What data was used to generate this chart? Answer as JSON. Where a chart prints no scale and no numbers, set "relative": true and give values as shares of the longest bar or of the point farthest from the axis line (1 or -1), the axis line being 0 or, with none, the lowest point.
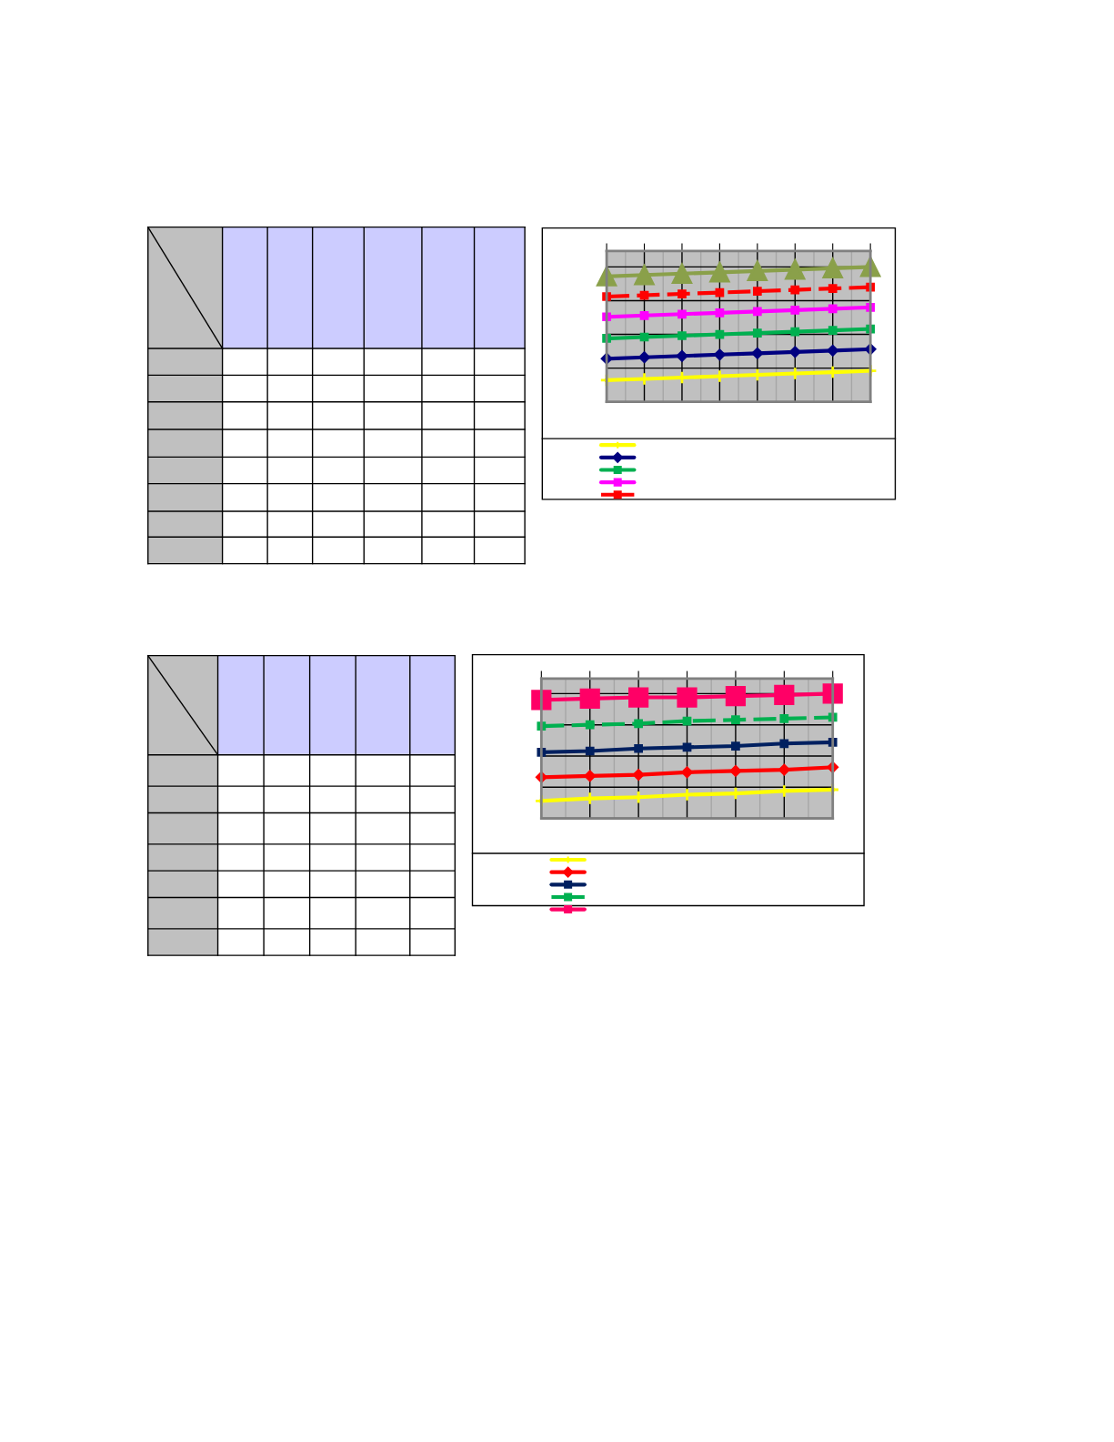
{
  "chart_data": [
    {
      "type": "line",
      "relative": true,
      "grid": true,
      "categories": [
        null,
        null,
        null,
        null,
        null,
        null,
        null,
        null
      ],
      "series": [
        {
          "color": "#ffff00",
          "marker": "cross",
          "values": [
            0.16,
            0.17,
            0.18,
            0.19,
            0.2,
            0.21,
            0.22,
            0.23
          ]
        },
        {
          "color": "#000080",
          "marker": "diamond",
          "values": [
            0.32,
            0.33,
            0.34,
            0.35,
            0.36,
            0.37,
            0.38,
            0.39
          ]
        },
        {
          "color": "#00b050",
          "marker": "square",
          "values": [
            0.47,
            0.48,
            0.49,
            0.5,
            0.51,
            0.52,
            0.53,
            0.54
          ]
        },
        {
          "color": "#ff00ff",
          "marker": "square",
          "values": [
            0.63,
            0.64,
            0.65,
            0.66,
            0.67,
            0.68,
            0.69,
            0.7
          ]
        },
        {
          "color": "#ff0000",
          "marker": "square",
          "line_style": "dashed",
          "values": [
            0.78,
            0.79,
            0.8,
            0.81,
            0.82,
            0.83,
            0.84,
            0.85
          ]
        },
        {
          "color": "#8aa04a",
          "marker": "triangle",
          "values": [
            0.93,
            0.94,
            0.95,
            0.96,
            0.97,
            0.98,
            0.99,
            1
          ]
        }
      ]
    },
    {
      "type": "line",
      "relative": true,
      "grid": true,
      "categories": [
        null,
        null,
        null,
        null,
        null,
        null,
        null
      ],
      "series": [
        {
          "color": "#ffff00",
          "marker": "cross",
          "values": [
            0.14,
            0.16,
            0.17,
            0.19,
            0.2,
            0.22,
            0.23
          ]
        },
        {
          "color": "#ff0000",
          "marker": "diamond",
          "values": [
            0.33,
            0.34,
            0.35,
            0.37,
            0.38,
            0.39,
            0.41
          ]
        },
        {
          "color": "#002060",
          "marker": "square",
          "values": [
            0.53,
            0.54,
            0.56,
            0.57,
            0.58,
            0.6,
            0.61
          ]
        },
        {
          "color": "#00b050",
          "marker": "square",
          "line_style": "dashed",
          "values": [
            0.74,
            0.75,
            0.76,
            0.78,
            0.79,
            0.8,
            0.81
          ]
        },
        {
          "color": "#ff0066",
          "marker": "square",
          "values": [
            0.95,
            0.96,
            0.97,
            0.97,
            0.98,
            0.99,
            1
          ]
        }
      ]
    }
  ]
}
